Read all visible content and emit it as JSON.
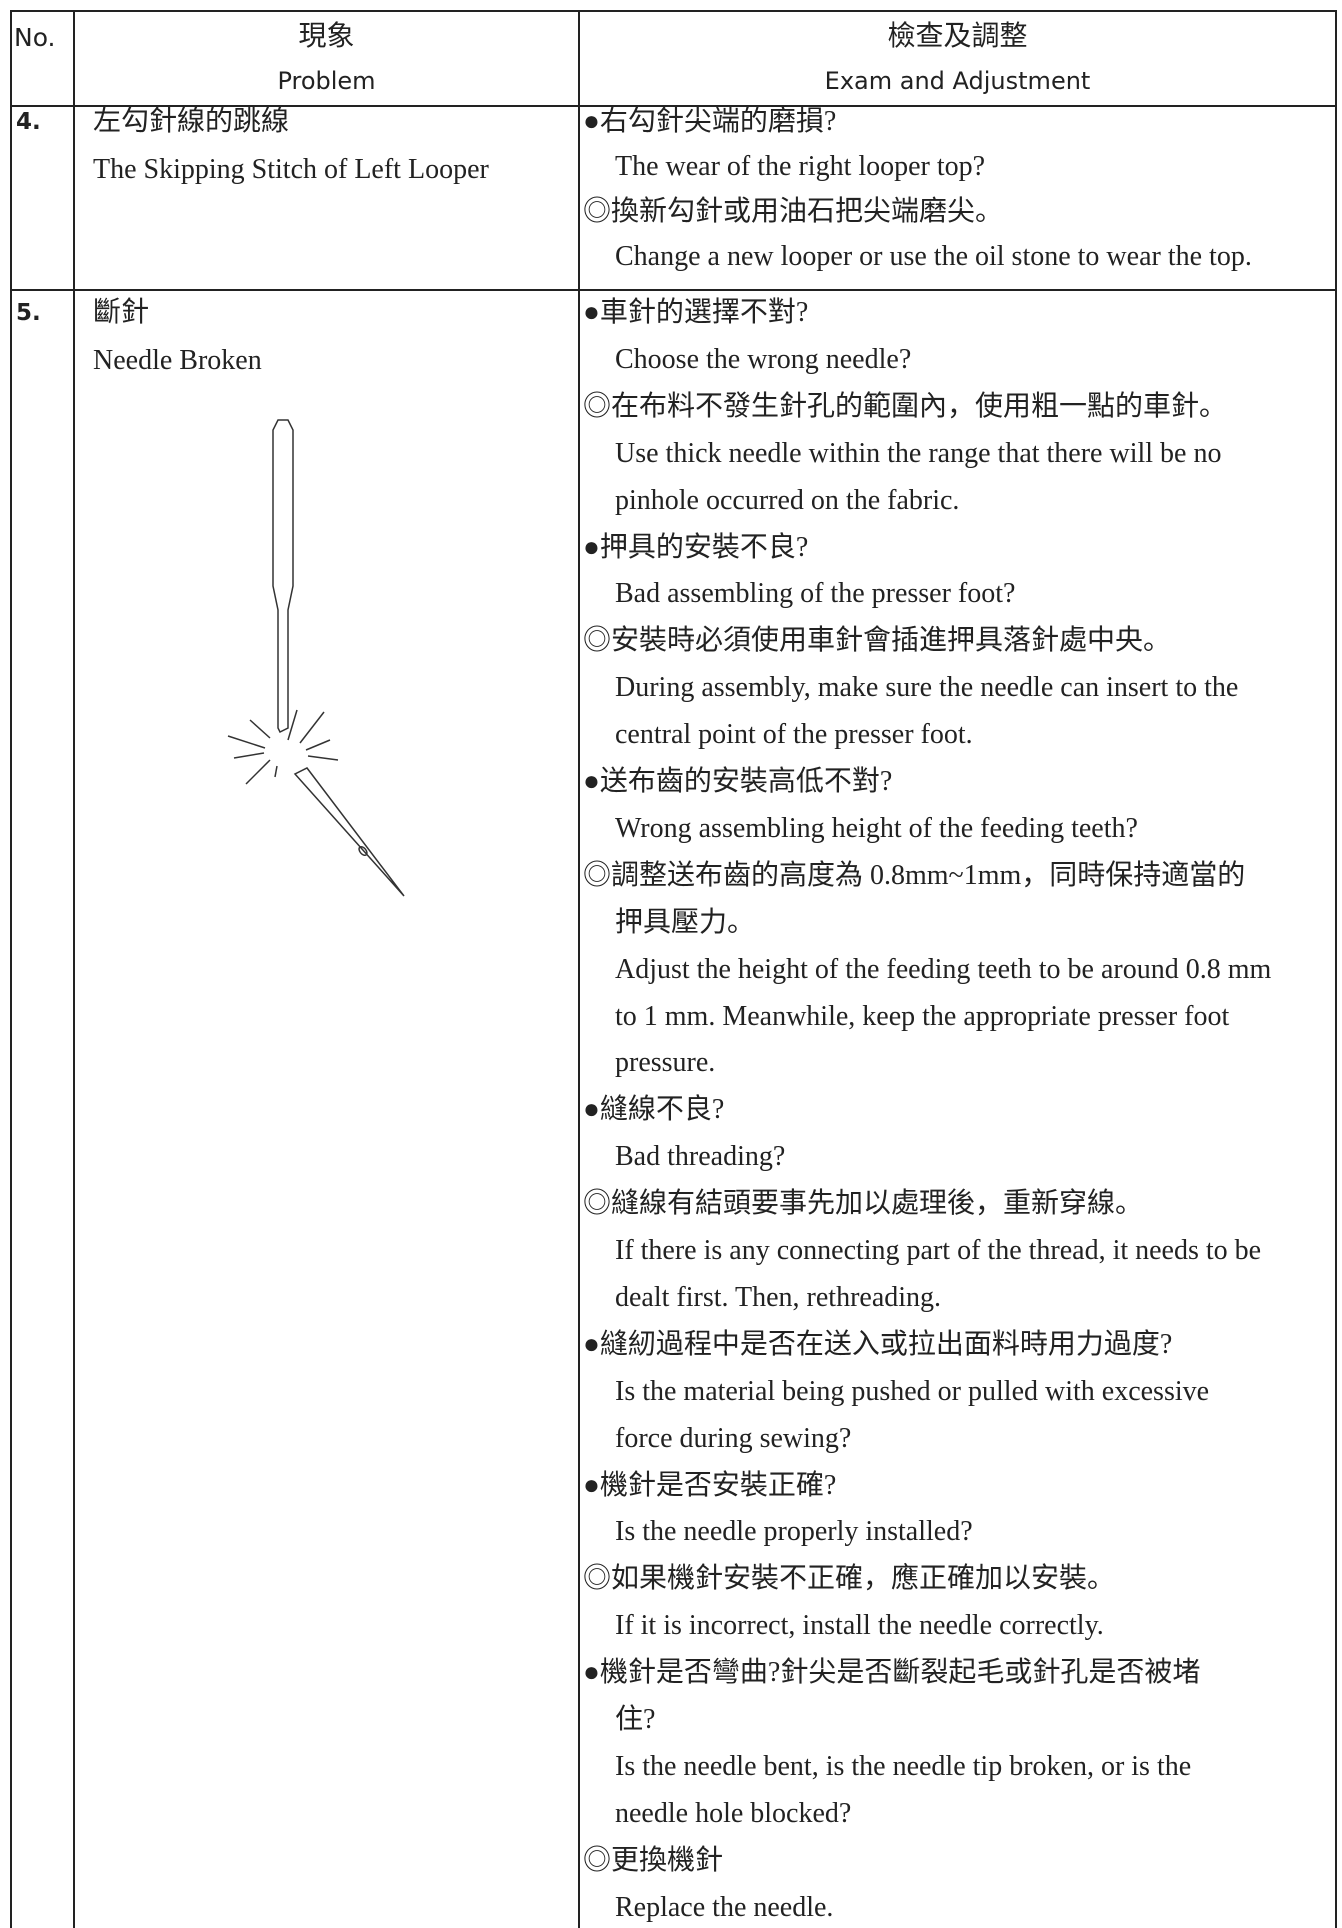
{
  "header": {
    "no": "No.",
    "problem_zh": "現象",
    "problem_en": "Problem",
    "exam_zh": "檢查及調整",
    "exam_en": "Exam and Adjustment"
  },
  "rows": [
    {
      "no": "4.",
      "problem_zh": "左勾針線的跳線",
      "problem_en": "The Skipping Stitch of Left Looper",
      "exam": [
        "●右勾針尖端的磨損?",
        "The wear of the right looper top?",
        "◎換新勾針或用油石把尖端磨尖。",
        "Change a new looper or use the oil stone to wear the top."
      ]
    },
    {
      "no": "5.",
      "problem_zh": "斷針",
      "problem_en": "Needle Broken",
      "exam": [
        "●車針的選擇不對?",
        "Choose the wrong needle?",
        "◎在布料不發生針孔的範圍內，使用粗一點的車針。",
        "Use thick needle within the range that there will be no",
        "pinhole occurred on the fabric.",
        "●押具的安裝不良?",
        "Bad assembling of the presser foot?",
        "◎安裝時必須使用車針會插進押具落針處中央。",
        "During assembly, make sure the needle can insert to the",
        "central point of the presser foot.",
        "●送布齒的安裝高低不對?",
        "Wrong assembling height of the feeding teeth?",
        "◎調整送布齒的高度為 0.8mm~1mm，同時保持適當的",
        "押具壓力。",
        "Adjust the height of the feeding teeth to be around 0.8 mm",
        "to 1 mm. Meanwhile, keep the appropriate presser foot",
        "pressure.",
        "●縫線不良?",
        "Bad threading?",
        "◎縫線有結頭要事先加以處理後，重新穿線。",
        "If there is any connecting part of the thread, it needs to be",
        "dealt first. Then, rethreading.",
        "●縫紉過程中是否在送入或拉出面料時用力過度?",
        "Is the material being pushed or pulled with excessive",
        "force during sewing?",
        "●機針是否安裝正確?",
        "Is the needle properly installed?",
        "◎如果機針安裝不正確，應正確加以安裝。",
        "If it is incorrect, install the needle correctly.",
        "●機針是否彎曲?針尖是否斷裂起毛或針孔是否被堵",
        "住?",
        "Is the needle bent, is the needle tip broken, or is the",
        "needle hole blocked?",
        "◎更換機針",
        "Replace the needle."
      ]
    }
  ]
}
